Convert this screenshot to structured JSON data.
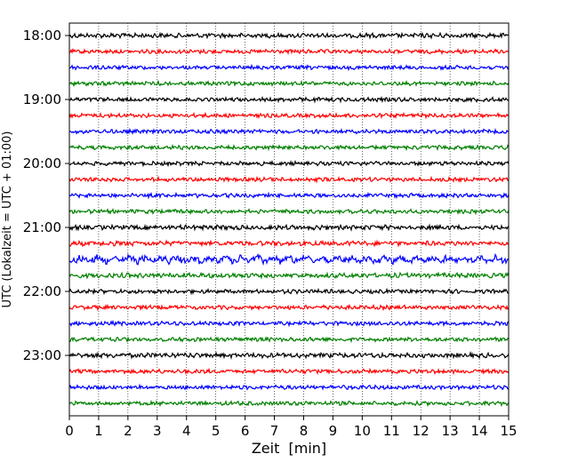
{
  "chart_data": {
    "type": "line",
    "title": "",
    "xlabel": "Zeit  [min]",
    "ylabel": "UTC (Lokalzeit = UTC + 01:00)",
    "xlim": [
      0,
      15
    ],
    "x_ticks": [
      0,
      1,
      2,
      3,
      4,
      5,
      6,
      7,
      8,
      9,
      10,
      11,
      12,
      13,
      14,
      15
    ],
    "y_tick_labels": [
      "18:00",
      "19:00",
      "20:00",
      "21:00",
      "22:00",
      "23:00"
    ],
    "grid": "vertical dotted at each minute",
    "trace_interval_min": 15,
    "trace_colors": [
      "#000000",
      "#ff0000",
      "#0000ff",
      "#008000"
    ],
    "traces": [
      {
        "start": "18:00",
        "color": "#000000",
        "amplitude": 0.35
      },
      {
        "start": "18:15",
        "color": "#ff0000",
        "amplitude": 0.3
      },
      {
        "start": "18:30",
        "color": "#0000ff",
        "amplitude": 0.3
      },
      {
        "start": "18:45",
        "color": "#008000",
        "amplitude": 0.3
      },
      {
        "start": "19:00",
        "color": "#000000",
        "amplitude": 0.3
      },
      {
        "start": "19:15",
        "color": "#ff0000",
        "amplitude": 0.3
      },
      {
        "start": "19:30",
        "color": "#0000ff",
        "amplitude": 0.3
      },
      {
        "start": "19:45",
        "color": "#008000",
        "amplitude": 0.3
      },
      {
        "start": "20:00",
        "color": "#000000",
        "amplitude": 0.3
      },
      {
        "start": "20:15",
        "color": "#ff0000",
        "amplitude": 0.3
      },
      {
        "start": "20:30",
        "color": "#0000ff",
        "amplitude": 0.3
      },
      {
        "start": "20:45",
        "color": "#008000",
        "amplitude": 0.3
      },
      {
        "start": "21:00",
        "color": "#000000",
        "amplitude": 0.35
      },
      {
        "start": "21:15",
        "color": "#ff0000",
        "amplitude": 0.35
      },
      {
        "start": "21:30",
        "color": "#0000ff",
        "amplitude": 0.5
      },
      {
        "start": "21:45",
        "color": "#008000",
        "amplitude": 0.35
      },
      {
        "start": "22:00",
        "color": "#000000",
        "amplitude": 0.3
      },
      {
        "start": "22:15",
        "color": "#ff0000",
        "amplitude": 0.3
      },
      {
        "start": "22:30",
        "color": "#0000ff",
        "amplitude": 0.3
      },
      {
        "start": "22:45",
        "color": "#008000",
        "amplitude": 0.3
      },
      {
        "start": "23:00",
        "color": "#000000",
        "amplitude": 0.35
      },
      {
        "start": "23:15",
        "color": "#ff0000",
        "amplitude": 0.3
      },
      {
        "start": "23:30",
        "color": "#0000ff",
        "amplitude": 0.3
      },
      {
        "start": "23:45",
        "color": "#008000",
        "amplitude": 0.3
      }
    ]
  }
}
